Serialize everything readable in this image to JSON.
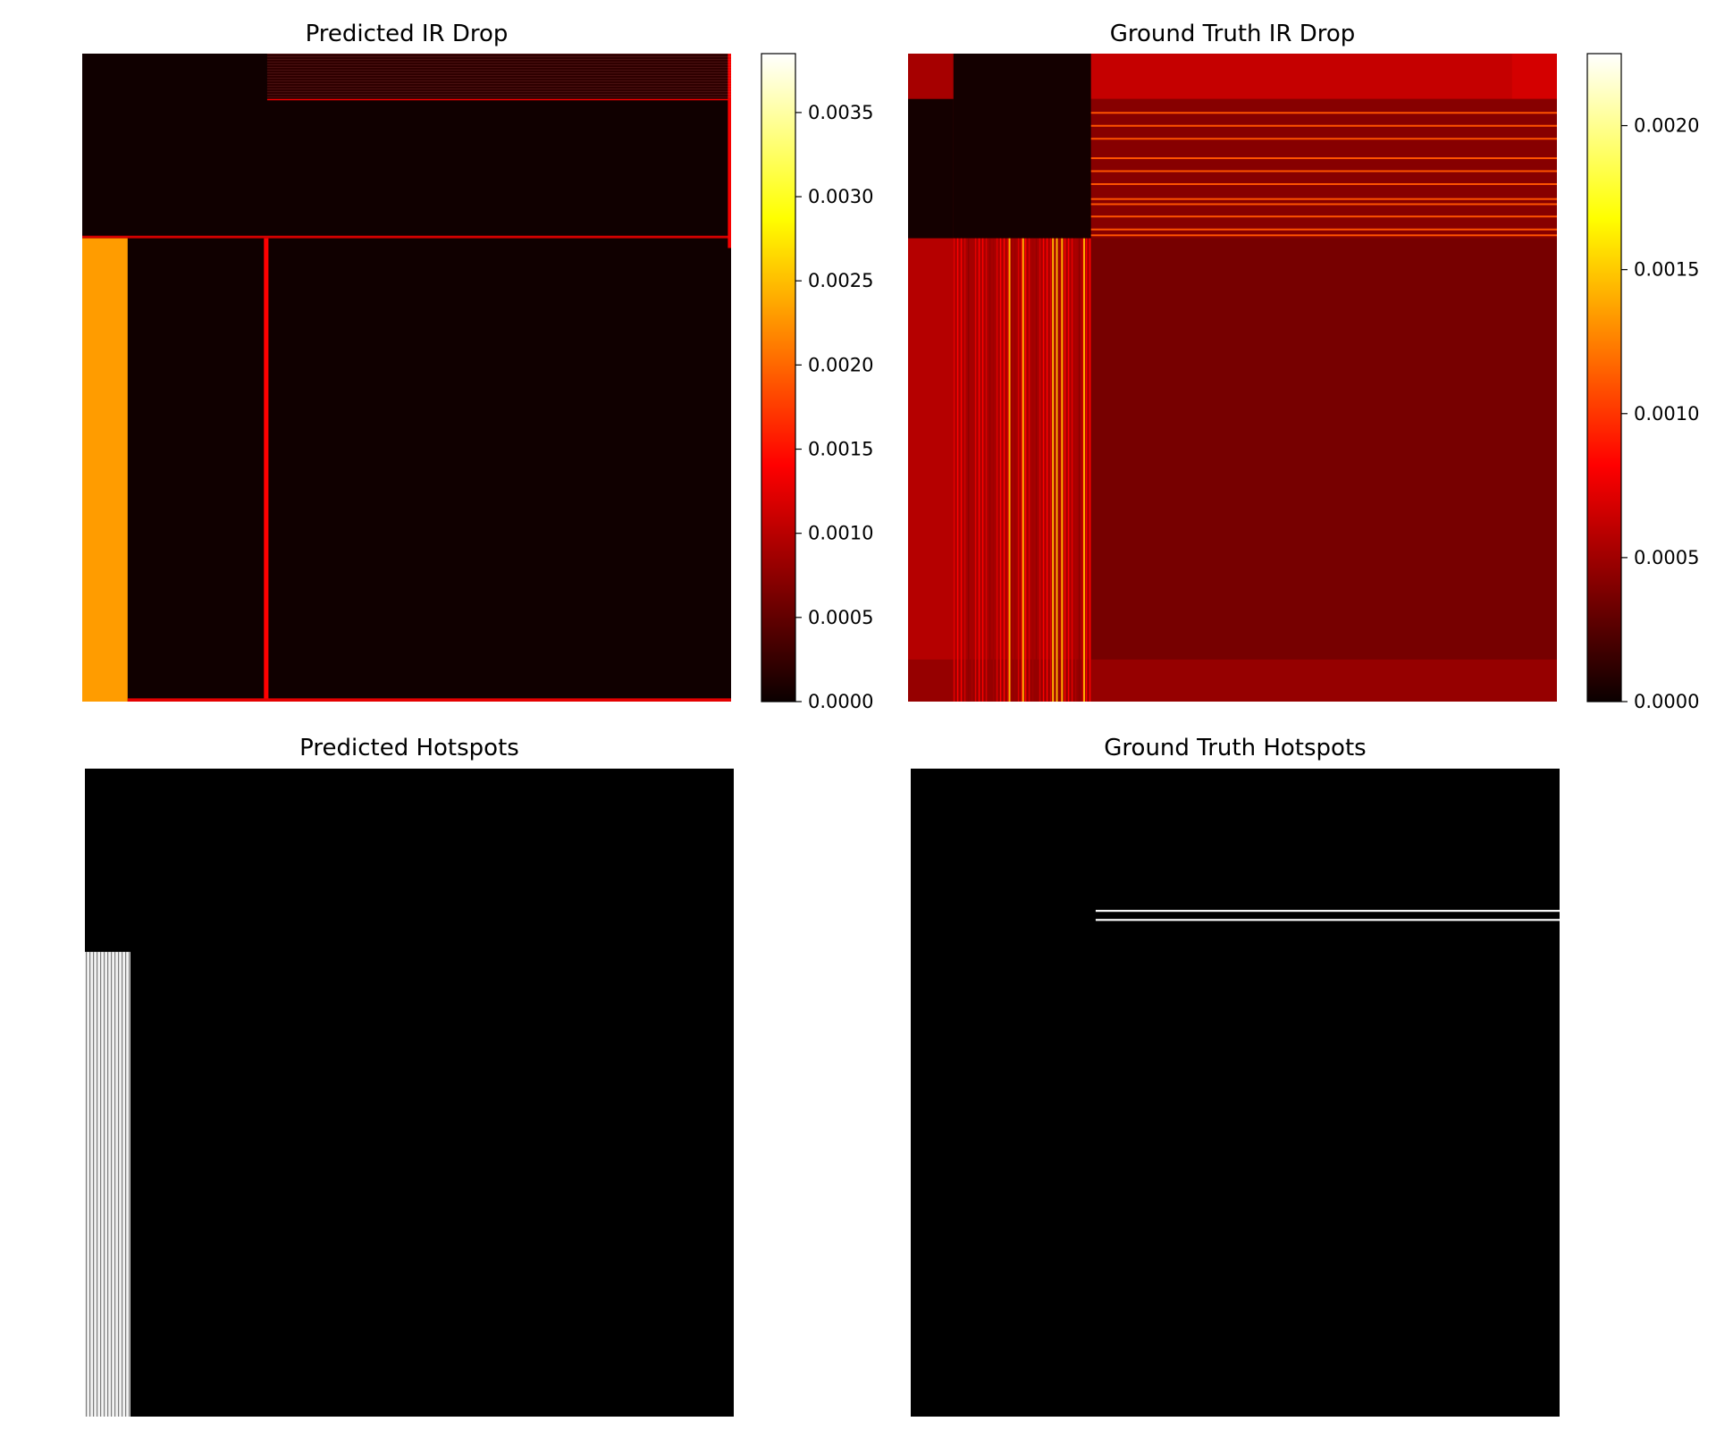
{
  "chart_data": [
    {
      "type": "heatmap",
      "title": "Predicted IR Drop",
      "colormap": "hot",
      "colorbar": {
        "min": 0.0,
        "max": 0.00385,
        "ticks": [
          "0.0000",
          "0.0005",
          "0.0010",
          "0.0015",
          "0.0020",
          "0.0025",
          "0.0030",
          "0.0035"
        ]
      },
      "axes_visible": false,
      "regions": [
        {
          "x": [
            0,
            1
          ],
          "y": [
            0,
            1
          ],
          "value": 3e-05
        },
        {
          "x": [
            0.285,
            1
          ],
          "y": [
            0,
            0.07
          ],
          "value": 0.0002
        },
        {
          "x": [
            0.285,
            1
          ],
          "y": [
            0.07,
            0.072
          ],
          "value": 0.0013
        },
        {
          "x": [
            0,
            1
          ],
          "y": [
            0.281,
            0.285
          ],
          "value": 0.0011
        },
        {
          "x": [
            0,
            0.07
          ],
          "y": [
            0.285,
            1
          ],
          "value": 0.0023
        },
        {
          "x": [
            0.28,
            0.287
          ],
          "y": [
            0.285,
            1
          ],
          "value": 0.0014
        },
        {
          "x": [
            0.07,
            1
          ],
          "y": [
            0.995,
            1
          ],
          "value": 0.0012
        },
        {
          "x": [
            0.995,
            1
          ],
          "y": [
            0,
            0.3
          ],
          "value": 0.0013
        }
      ]
    },
    {
      "type": "heatmap",
      "title": "Ground Truth IR Drop",
      "colormap": "hot",
      "colorbar": {
        "min": 0.0,
        "max": 0.00225,
        "ticks": [
          "0.0000",
          "0.0005",
          "0.0010",
          "0.0015",
          "0.0020"
        ]
      },
      "axes_visible": false,
      "regions": [
        {
          "x": [
            0,
            1
          ],
          "y": [
            0,
            1
          ],
          "value": 0.00035
        },
        {
          "x": [
            0,
            0.07
          ],
          "y": [
            0,
            0.07
          ],
          "value": 0.0005
        },
        {
          "x": [
            0,
            0.07
          ],
          "y": [
            0.07,
            0.285
          ],
          "value": 3e-05
        },
        {
          "x": [
            0.07,
            0.282
          ],
          "y": [
            0,
            0.285
          ],
          "value": 3e-05
        },
        {
          "x": [
            0.282,
            0.93
          ],
          "y": [
            0,
            0.07
          ],
          "value": 0.0006
        },
        {
          "x": [
            0.93,
            1
          ],
          "y": [
            0,
            0.07
          ],
          "value": 0.00065
        },
        {
          "x": [
            0.282,
            1
          ],
          "y": [
            0.07,
            0.285
          ],
          "value": 0.0004
        },
        {
          "x": [
            0,
            0.07
          ],
          "y": [
            0.285,
            1
          ],
          "value": 0.00055
        },
        {
          "x": [
            0.07,
            0.282
          ],
          "y": [
            0.285,
            1
          ],
          "value": 0.0005
        },
        {
          "x": [
            0,
            1
          ],
          "y": [
            0.935,
            1
          ],
          "value": 0.00045
        }
      ],
      "bright_stripes": [
        0.155,
        0.176,
        0.222,
        0.228,
        0.236,
        0.27
      ],
      "horizontal_stripes": [
        0.09,
        0.11,
        0.13,
        0.16,
        0.18,
        0.2,
        0.223,
        0.231,
        0.25,
        0.27,
        0.279
      ]
    },
    {
      "type": "heatmap",
      "title": "Predicted Hotspots",
      "colormap": "gray",
      "axes_visible": false,
      "regions": [
        {
          "x": [
            0,
            1
          ],
          "y": [
            0,
            1
          ],
          "value": 0
        },
        {
          "x": [
            0,
            0.07
          ],
          "y": [
            0.283,
            1
          ],
          "value": 1
        }
      ]
    },
    {
      "type": "heatmap",
      "title": "Ground Truth Hotspots",
      "colormap": "gray",
      "axes_visible": false,
      "regions": [
        {
          "x": [
            0,
            1
          ],
          "y": [
            0,
            1
          ],
          "value": 0
        },
        {
          "x": [
            0.285,
            1
          ],
          "y": [
            0.218,
            0.221
          ],
          "value": 1
        },
        {
          "x": [
            0.285,
            1
          ],
          "y": [
            0.232,
            0.235
          ],
          "value": 1
        }
      ]
    }
  ]
}
